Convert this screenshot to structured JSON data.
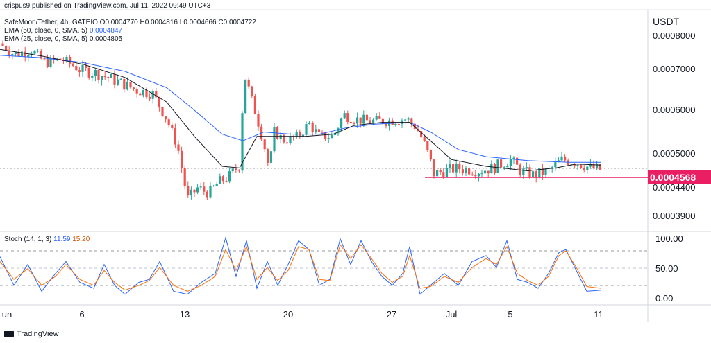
{
  "header": {
    "publisher": "crispus9 published on TradingView.com, Jul 11, 2022 09:49 UTC+3",
    "symbol": "SafeMoon/Tether, 4h, GATEIO",
    "ohlc": "O0.0004770 H0.0004816 L0.0004666 C0.0004722",
    "ema50_label": "EMA (50, close, 0, SMA, 5)",
    "ema50_value": "0.0004847",
    "ema25_label": "EMA (25, close, 0, SMA, 5)",
    "ema25_value": "0.0004805",
    "currency": "USDT"
  },
  "price_axis": {
    "ticks": [
      "0.0008000",
      "0.0007000",
      "0.0006000",
      "0.0005000",
      "0.0004400",
      "0.0003900"
    ],
    "current_price": "0.0004568",
    "current_price_color": "#e91e63"
  },
  "stoch": {
    "label": "Stoch (14, 1, 3)",
    "k": "11.59",
    "d": "15.20",
    "ticks": [
      "100.00",
      "50.00",
      "0.00"
    ],
    "k_color": "#2962ff",
    "d_color": "#ff6d00"
  },
  "time_axis": {
    "ticks": [
      "un",
      "6",
      "13",
      "20",
      "27",
      "Jul",
      "5",
      "11"
    ]
  },
  "footer": {
    "brand": "TradingView"
  },
  "chart_data": {
    "type": "candlestick",
    "title": "SafeMoon/Tether, 4h, GATEIO",
    "ylabel": "USDT",
    "ylim": [
      0.00037,
      0.00082
    ],
    "colors": {
      "up": "#26a69a",
      "down": "#ef5350",
      "ema50": "#2962ff",
      "ema25": "#131722",
      "support": "#e91e63"
    },
    "support_level": 0.0004568,
    "price_path": [
      [
        0,
        0.000778
      ],
      [
        20,
        0.000745
      ],
      [
        45,
        0.000758
      ],
      [
        65,
        0.00072
      ],
      [
        90,
        0.00073
      ],
      [
        115,
        0.0007
      ],
      [
        140,
        0.00069
      ],
      [
        170,
        0.00067
      ],
      [
        195,
        0.00065
      ],
      [
        220,
        0.00064
      ],
      [
        240,
        0.00058
      ],
      [
        255,
        0.00052
      ],
      [
        270,
        0.00042
      ],
      [
        285,
        0.00044
      ],
      [
        300,
        0.00043
      ],
      [
        315,
        0.00045
      ],
      [
        330,
        0.00046
      ],
      [
        345,
        0.00048
      ],
      [
        352,
        0.00069
      ],
      [
        360,
        0.00064
      ],
      [
        375,
        0.000555
      ],
      [
        388,
        0.00047
      ],
      [
        395,
        0.00055
      ],
      [
        410,
        0.00053
      ],
      [
        430,
        0.00054
      ],
      [
        445,
        0.00057
      ],
      [
        460,
        0.00054
      ],
      [
        480,
        0.00054
      ],
      [
        495,
        0.00059
      ],
      [
        510,
        0.00058
      ],
      [
        530,
        0.000575
      ],
      [
        555,
        0.000575
      ],
      [
        585,
        0.00058
      ],
      [
        600,
        0.00056
      ],
      [
        612,
        0.00052
      ],
      [
        625,
        0.000465
      ],
      [
        640,
        0.00047
      ],
      [
        660,
        0.000475
      ],
      [
        690,
        0.00047
      ],
      [
        710,
        0.000475
      ],
      [
        735,
        0.00049
      ],
      [
        750,
        0.00047
      ],
      [
        770,
        0.000462
      ],
      [
        790,
        0.00047
      ],
      [
        810,
        0.00049
      ],
      [
        830,
        0.000485
      ],
      [
        850,
        0.000475
      ],
      [
        866,
        0.000472
      ]
    ],
    "ema50_path": [
      [
        0,
        0.000742
      ],
      [
        60,
        0.000735
      ],
      [
        120,
        0.00072
      ],
      [
        180,
        0.000695
      ],
      [
        240,
        0.000655
      ],
      [
        280,
        0.0006
      ],
      [
        320,
        0.000545
      ],
      [
        350,
        0.00053
      ],
      [
        380,
        0.00055
      ],
      [
        420,
        0.000545
      ],
      [
        460,
        0.000545
      ],
      [
        500,
        0.00056
      ],
      [
        540,
        0.000568
      ],
      [
        590,
        0.000572
      ],
      [
        620,
        0.00055
      ],
      [
        660,
        0.00051
      ],
      [
        700,
        0.000495
      ],
      [
        760,
        0.000488
      ],
      [
        820,
        0.000485
      ],
      [
        866,
        0.000485
      ]
    ],
    "ema25_path": [
      [
        0,
        0.00076
      ],
      [
        60,
        0.00074
      ],
      [
        120,
        0.000715
      ],
      [
        180,
        0.00068
      ],
      [
        240,
        0.00062
      ],
      [
        280,
        0.00054
      ],
      [
        320,
        0.000478
      ],
      [
        345,
        0.000475
      ],
      [
        370,
        0.00054
      ],
      [
        400,
        0.00054
      ],
      [
        440,
        0.00054
      ],
      [
        480,
        0.000545
      ],
      [
        510,
        0.000565
      ],
      [
        550,
        0.000572
      ],
      [
        590,
        0.000572
      ],
      [
        620,
        0.00053
      ],
      [
        650,
        0.00049
      ],
      [
        700,
        0.000478
      ],
      [
        760,
        0.00047
      ],
      [
        800,
        0.000475
      ],
      [
        830,
        0.000482
      ],
      [
        866,
        0.00048
      ]
    ],
    "stoch_k_path": [
      [
        0,
        68
      ],
      [
        20,
        20
      ],
      [
        40,
        55
      ],
      [
        60,
        10
      ],
      [
        80,
        40
      ],
      [
        95,
        60
      ],
      [
        115,
        25
      ],
      [
        135,
        15
      ],
      [
        150,
        55
      ],
      [
        165,
        20
      ],
      [
        180,
        5
      ],
      [
        200,
        25
      ],
      [
        215,
        30
      ],
      [
        230,
        60
      ],
      [
        250,
        10
      ],
      [
        270,
        5
      ],
      [
        290,
        25
      ],
      [
        310,
        40
      ],
      [
        325,
        100
      ],
      [
        340,
        35
      ],
      [
        355,
        95
      ],
      [
        370,
        15
      ],
      [
        385,
        60
      ],
      [
        400,
        20
      ],
      [
        415,
        55
      ],
      [
        430,
        95
      ],
      [
        445,
        80
      ],
      [
        460,
        20
      ],
      [
        475,
        30
      ],
      [
        490,
        98
      ],
      [
        505,
        55
      ],
      [
        520,
        95
      ],
      [
        535,
        60
      ],
      [
        550,
        35
      ],
      [
        565,
        20
      ],
      [
        580,
        40
      ],
      [
        590,
        85
      ],
      [
        605,
        5
      ],
      [
        620,
        20
      ],
      [
        640,
        40
      ],
      [
        660,
        20
      ],
      [
        680,
        60
      ],
      [
        700,
        70
      ],
      [
        715,
        50
      ],
      [
        730,
        95
      ],
      [
        745,
        30
      ],
      [
        760,
        25
      ],
      [
        775,
        15
      ],
      [
        790,
        40
      ],
      [
        805,
        75
      ],
      [
        815,
        80
      ],
      [
        830,
        45
      ],
      [
        845,
        10
      ],
      [
        866,
        12
      ]
    ],
    "stoch_d_path": [
      [
        0,
        60
      ],
      [
        20,
        30
      ],
      [
        40,
        48
      ],
      [
        60,
        20
      ],
      [
        80,
        35
      ],
      [
        95,
        55
      ],
      [
        115,
        30
      ],
      [
        135,
        20
      ],
      [
        150,
        45
      ],
      [
        165,
        25
      ],
      [
        180,
        12
      ],
      [
        200,
        20
      ],
      [
        215,
        28
      ],
      [
        230,
        50
      ],
      [
        250,
        20
      ],
      [
        270,
        10
      ],
      [
        290,
        20
      ],
      [
        310,
        35
      ],
      [
        325,
        80
      ],
      [
        340,
        45
      ],
      [
        355,
        85
      ],
      [
        370,
        30
      ],
      [
        385,
        50
      ],
      [
        400,
        28
      ],
      [
        415,
        45
      ],
      [
        430,
        85
      ],
      [
        445,
        80
      ],
      [
        460,
        30
      ],
      [
        475,
        28
      ],
      [
        490,
        88
      ],
      [
        505,
        65
      ],
      [
        520,
        88
      ],
      [
        535,
        65
      ],
      [
        550,
        40
      ],
      [
        565,
        25
      ],
      [
        580,
        35
      ],
      [
        590,
        70
      ],
      [
        605,
        15
      ],
      [
        620,
        18
      ],
      [
        640,
        35
      ],
      [
        660,
        25
      ],
      [
        680,
        50
      ],
      [
        700,
        65
      ],
      [
        715,
        55
      ],
      [
        730,
        85
      ],
      [
        745,
        40
      ],
      [
        760,
        28
      ],
      [
        775,
        20
      ],
      [
        790,
        35
      ],
      [
        805,
        70
      ],
      [
        815,
        78
      ],
      [
        830,
        50
      ],
      [
        845,
        18
      ],
      [
        866,
        15
      ]
    ]
  }
}
